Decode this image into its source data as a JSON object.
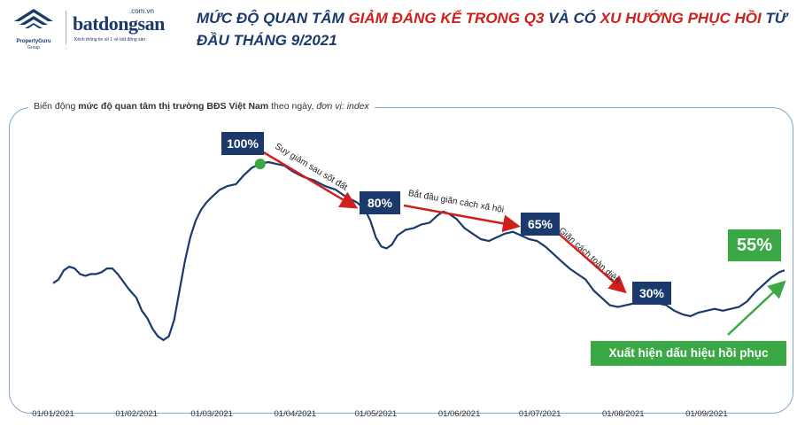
{
  "header": {
    "pg_logo_text": "PropertyGuru",
    "pg_logo_sub": "Group",
    "bds_domain": ".com.vn",
    "bds_name": "batdongsan",
    "bds_tagline": "Kênh thông tin số 1 về bất động sản",
    "title_part1": "MỨC ĐỘ QUAN TÂM ",
    "title_part2": "GIẢM ĐÁNG KỂ TRONG Q3",
    "title_part3": " VÀ CÓ ",
    "title_part4": "XU HƯỚNG PHỤC HỒI",
    "title_part5": " TỪ ĐẦU THÁNG 9/2021"
  },
  "subtitle": {
    "prefix": "Biến động ",
    "bold": "mức độ quan tâm thị trường BĐS Việt Nam",
    "middle": " theo ngày, ",
    "italic": "đơn vị: index"
  },
  "colors": {
    "line": "#1a3a6c",
    "value_box": "#1a3a6c",
    "arrow_red": "#d0201c",
    "green": "#3aa845",
    "frame": "#7fa8cc"
  },
  "chart_data": {
    "type": "line",
    "title": "Biến động mức độ quan tâm thị trường BĐS Việt Nam theo ngày, đơn vị: index",
    "x_start": "2021-01-01",
    "x_end": "2021-09-30",
    "x_tick_labels": [
      "01/01/2021",
      "01/02/2021",
      "01/03/2021",
      "01/04/2021",
      "01/05/2021",
      "01/06/2021",
      "01/07/2021",
      "01/08/2021",
      "01/09/2021"
    ],
    "x_tick_dates": [
      "2021-01-01",
      "2021-02-01",
      "2021-03-01",
      "2021-04-01",
      "2021-05-01",
      "2021-06-01",
      "2021-07-01",
      "2021-08-01",
      "2021-09-01"
    ],
    "ylim": [
      0,
      110
    ],
    "series": [
      {
        "points": [
          [
            "2021-01-01",
            32
          ],
          [
            "2021-01-03",
            34
          ],
          [
            "2021-01-05",
            39
          ],
          [
            "2021-01-07",
            41
          ],
          [
            "2021-01-09",
            40
          ],
          [
            "2021-01-11",
            37
          ],
          [
            "2021-01-13",
            36
          ],
          [
            "2021-01-15",
            37
          ],
          [
            "2021-01-17",
            37
          ],
          [
            "2021-01-19",
            38
          ],
          [
            "2021-01-21",
            40
          ],
          [
            "2021-01-23",
            40
          ],
          [
            "2021-01-25",
            37
          ],
          [
            "2021-01-27",
            33
          ],
          [
            "2021-01-29",
            29
          ],
          [
            "2021-02-01",
            24
          ],
          [
            "2021-02-03",
            17
          ],
          [
            "2021-02-05",
            13
          ],
          [
            "2021-02-07",
            7
          ],
          [
            "2021-02-09",
            3
          ],
          [
            "2021-02-11",
            1
          ],
          [
            "2021-02-13",
            3
          ],
          [
            "2021-02-15",
            12
          ],
          [
            "2021-02-17",
            28
          ],
          [
            "2021-02-19",
            44
          ],
          [
            "2021-02-21",
            57
          ],
          [
            "2021-02-23",
            66
          ],
          [
            "2021-02-25",
            72
          ],
          [
            "2021-02-27",
            76
          ],
          [
            "2021-03-01",
            79
          ],
          [
            "2021-03-04",
            83
          ],
          [
            "2021-03-07",
            85
          ],
          [
            "2021-03-10",
            86
          ],
          [
            "2021-03-13",
            91
          ],
          [
            "2021-03-16",
            95
          ],
          [
            "2021-03-19",
            97
          ],
          [
            "2021-03-22",
            98
          ],
          [
            "2021-03-25",
            97
          ],
          [
            "2021-03-28",
            96
          ],
          [
            "2021-03-31",
            93
          ],
          [
            "2021-04-04",
            90
          ],
          [
            "2021-04-08",
            88
          ],
          [
            "2021-04-12",
            85
          ],
          [
            "2021-04-16",
            83
          ],
          [
            "2021-04-20",
            79
          ],
          [
            "2021-04-24",
            76
          ],
          [
            "2021-04-27",
            72
          ],
          [
            "2021-04-29",
            66
          ],
          [
            "2021-05-01",
            57
          ],
          [
            "2021-05-03",
            52
          ],
          [
            "2021-05-05",
            51
          ],
          [
            "2021-05-07",
            53
          ],
          [
            "2021-05-09",
            58
          ],
          [
            "2021-05-12",
            61
          ],
          [
            "2021-05-15",
            62
          ],
          [
            "2021-05-18",
            64
          ],
          [
            "2021-05-21",
            65
          ],
          [
            "2021-05-24",
            69
          ],
          [
            "2021-05-26",
            71
          ],
          [
            "2021-05-28",
            70
          ],
          [
            "2021-05-31",
            67
          ],
          [
            "2021-06-03",
            62
          ],
          [
            "2021-06-06",
            59
          ],
          [
            "2021-06-09",
            56
          ],
          [
            "2021-06-12",
            55
          ],
          [
            "2021-06-15",
            57
          ],
          [
            "2021-06-18",
            59
          ],
          [
            "2021-06-21",
            60
          ],
          [
            "2021-06-24",
            58
          ],
          [
            "2021-06-27",
            56
          ],
          [
            "2021-06-30",
            55
          ],
          [
            "2021-07-03",
            52
          ],
          [
            "2021-07-06",
            48
          ],
          [
            "2021-07-09",
            44
          ],
          [
            "2021-07-12",
            40
          ],
          [
            "2021-07-15",
            37
          ],
          [
            "2021-07-18",
            34
          ],
          [
            "2021-07-21",
            28
          ],
          [
            "2021-07-24",
            24
          ],
          [
            "2021-07-27",
            20
          ],
          [
            "2021-07-30",
            19
          ],
          [
            "2021-08-02",
            20
          ],
          [
            "2021-08-05",
            21
          ],
          [
            "2021-08-08",
            22
          ],
          [
            "2021-08-11",
            22
          ],
          [
            "2021-08-14",
            21
          ],
          [
            "2021-08-17",
            20
          ],
          [
            "2021-08-20",
            17
          ],
          [
            "2021-08-23",
            15
          ],
          [
            "2021-08-26",
            14
          ],
          [
            "2021-08-29",
            16
          ],
          [
            "2021-09-01",
            17
          ],
          [
            "2021-09-04",
            18
          ],
          [
            "2021-09-07",
            17
          ],
          [
            "2021-09-10",
            18
          ],
          [
            "2021-09-13",
            19
          ],
          [
            "2021-09-16",
            22
          ],
          [
            "2021-09-19",
            27
          ],
          [
            "2021-09-22",
            31
          ],
          [
            "2021-09-25",
            35
          ],
          [
            "2021-09-28",
            38
          ],
          [
            "2021-09-30",
            39
          ]
        ]
      }
    ],
    "peak_marker": {
      "date": "2021-03-19",
      "value": 97,
      "color": "#3aa845"
    }
  },
  "annotations": {
    "box_100": "100%",
    "box_80": "80%",
    "box_65": "65%",
    "box_30": "30%",
    "box_55": "55%",
    "text_1": "Suy giảm sau sốt đất",
    "text_2": "Bắt đầu giãn cách xã hội",
    "text_3": "Giãn cách toàn diện",
    "recovery": "Xuất hiện dấu hiệu hồi phục"
  }
}
